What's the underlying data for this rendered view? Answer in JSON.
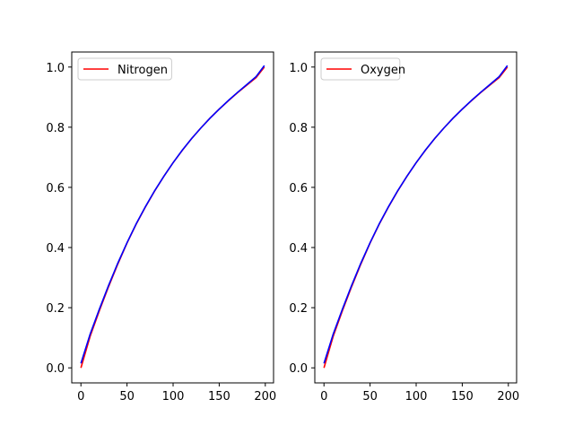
{
  "chart_data": [
    {
      "type": "line",
      "xlim": [
        -9.95,
        208.95
      ],
      "ylim": [
        -0.05,
        1.05
      ],
      "xticks": [
        0,
        50,
        100,
        150,
        200
      ],
      "yticks": [
        0.0,
        0.2,
        0.4,
        0.6,
        0.8,
        1.0
      ],
      "xtick_labels": [
        "0",
        "50",
        "100",
        "150",
        200
      ],
      "ytick_labels": [
        "0.0",
        "0.2",
        "0.4",
        "0.6",
        "0.8",
        "1.0"
      ],
      "legend": {
        "placement": "upper-left"
      },
      "grid": false,
      "series": [
        {
          "name": "Nitrogen",
          "color": "#ff0000",
          "x": [
            0,
            10,
            20,
            30,
            40,
            50,
            60,
            70,
            80,
            90,
            100,
            110,
            120,
            130,
            140,
            150,
            160,
            170,
            180,
            190,
            199
          ],
          "y": [
            0.0,
            0.105,
            0.19,
            0.27,
            0.345,
            0.415,
            0.478,
            0.535,
            0.588,
            0.637,
            0.682,
            0.723,
            0.762,
            0.797,
            0.83,
            0.86,
            0.888,
            0.915,
            0.94,
            0.965,
            1.0
          ]
        },
        {
          "name": "",
          "color": "#0000ff",
          "x": [
            0,
            10,
            20,
            30,
            40,
            50,
            60,
            70,
            80,
            90,
            100,
            110,
            120,
            130,
            140,
            150,
            160,
            170,
            180,
            190,
            199
          ],
          "y": [
            0.015,
            0.112,
            0.195,
            0.274,
            0.348,
            0.416,
            0.479,
            0.536,
            0.589,
            0.637,
            0.682,
            0.724,
            0.762,
            0.797,
            0.83,
            0.86,
            0.889,
            0.916,
            0.942,
            0.968,
            1.005
          ]
        }
      ]
    },
    {
      "type": "line",
      "xlim": [
        -9.95,
        208.95
      ],
      "ylim": [
        -0.05,
        1.05
      ],
      "xticks": [
        0,
        50,
        100,
        150,
        200
      ],
      "yticks": [
        0.0,
        0.2,
        0.4,
        0.6,
        0.8,
        1.0
      ],
      "xtick_labels": [
        "0",
        "50",
        "100",
        "150",
        "200"
      ],
      "ytick_labels": [
        "0.0",
        "0.2",
        "0.4",
        "0.6",
        "0.8",
        "1.0"
      ],
      "legend": {
        "placement": "upper-left"
      },
      "grid": false,
      "series": [
        {
          "name": "Oxygen",
          "color": "#ff0000",
          "x": [
            0,
            10,
            20,
            30,
            40,
            50,
            60,
            70,
            80,
            90,
            100,
            110,
            120,
            130,
            140,
            150,
            160,
            170,
            180,
            190,
            199
          ],
          "y": [
            0.0,
            0.105,
            0.19,
            0.27,
            0.345,
            0.415,
            0.478,
            0.535,
            0.588,
            0.637,
            0.682,
            0.723,
            0.762,
            0.797,
            0.83,
            0.86,
            0.888,
            0.915,
            0.94,
            0.965,
            1.0
          ]
        },
        {
          "name": "",
          "color": "#0000ff",
          "x": [
            0,
            10,
            20,
            30,
            40,
            50,
            60,
            70,
            80,
            90,
            100,
            110,
            120,
            130,
            140,
            150,
            160,
            170,
            180,
            190,
            199
          ],
          "y": [
            0.015,
            0.112,
            0.195,
            0.274,
            0.348,
            0.416,
            0.479,
            0.536,
            0.589,
            0.637,
            0.682,
            0.724,
            0.762,
            0.797,
            0.83,
            0.86,
            0.889,
            0.916,
            0.942,
            0.968,
            1.005
          ]
        }
      ]
    }
  ]
}
